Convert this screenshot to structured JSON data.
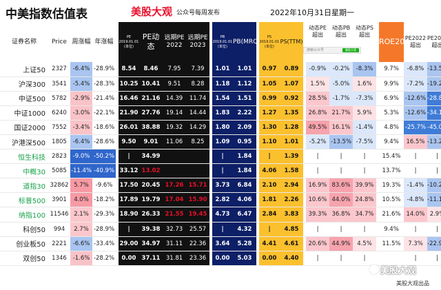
{
  "header": {
    "title": "中美指数估值表",
    "brand": "美股大观",
    "brand_sub": "公众号每周发布",
    "date": "2022年10月31日星期一"
  },
  "columns": {
    "name": "证券名称",
    "price": "Price",
    "week_chg": "周涨幅",
    "year_chg": "年涨幅",
    "pe_pct": "PE",
    "pe_pct_sub": "2019.01.01 (本位)",
    "pe_dyn": "PE动态",
    "pe_2022": "远期PE 2022",
    "pe_2023": "远期PE 2023",
    "pb_pct": "PB",
    "pb_pct_sub": "2019.01.01 (本位)",
    "pb_mrq": "PB(MRQ)",
    "ps_pct": "PS",
    "ps_pct_sub": "2019.01.01 (本位)",
    "ps_ttm": "PS(TTM)",
    "dyn_pe_exceed": "动态PE 超出",
    "dyn_pb_exceed": "动态PB 超出",
    "dyn_ps_exceed": "动态PS 超出",
    "roe": "ROE2021",
    "pe2022_exceed": "PE2022 超出",
    "pe2023_exceed": "PE2023 超出"
  },
  "wechat": {
    "placeholder": "搜索公众号",
    "button": "美股大观"
  },
  "colors": {
    "dark": "#111111",
    "navy": "#0d1f66",
    "gold": "#fbc02d",
    "orange": "#f5782a",
    "red": "#e8102a",
    "green": "#1aa24b",
    "blue": "#1a3ea6"
  },
  "rows": [
    {
      "name": "上证50",
      "green": false,
      "price": "2327",
      "week": "-6.4%",
      "year": "-28.9%",
      "pe_pct": "8.54",
      "pe_dyn": "8.46",
      "pe22": "7.95",
      "pe23": "7.39",
      "pb_pct": "1.01",
      "pb": "1.01",
      "ps_pct": "0.97",
      "ps": "0.89",
      "dpe": "-0.9%",
      "dpb": "-0.2%",
      "dps": "-8.3%",
      "roe": "9.7%",
      "e22": "-6.8%",
      "e23": "-13.5%"
    },
    {
      "name": "沪深300",
      "green": false,
      "price": "3541",
      "week": "-5.4%",
      "year": "-28.3%",
      "pe_pct": "10.25",
      "pe_dyn": "10.41",
      "pe22": "9.51",
      "pe23": "8.28",
      "pb_pct": "1.18",
      "pb": "1.12",
      "ps_pct": "1.05",
      "ps": "1.07",
      "dpe": "1.5%",
      "dpb": "-5.0%",
      "dps": "1.6%",
      "roe": "9.9%",
      "e22": "-7.2%",
      "e23": "-19.2%"
    },
    {
      "name": "中证500",
      "green": false,
      "price": "5782",
      "week": "-2.9%",
      "year": "-21.4%",
      "pe_pct": "16.46",
      "pe_dyn": "21.16",
      "pe22": "14.39",
      "pe23": "11.74",
      "pb_pct": "1.54",
      "pb": "1.51",
      "ps_pct": "0.99",
      "ps": "0.92",
      "dpe": "28.5%",
      "dpb": "-1.7%",
      "dps": "-7.3%",
      "roe": "6.9%",
      "e22": "-12.6%",
      "e23": "-28.8%"
    },
    {
      "name": "中证1000",
      "green": false,
      "price": "6240",
      "week": "-3.0%",
      "year": "-22.1%",
      "pe_pct": "21.90",
      "pe_dyn": "27.76",
      "pe22": "19.14",
      "pe23": "14.44",
      "pb_pct": "1.83",
      "pb": "2.22",
      "ps_pct": "1.27",
      "ps": "1.35",
      "dpe": "26.8%",
      "dpb": "21.7%",
      "dps": "5.9%",
      "roe": "5.3%",
      "e22": "-12.6%",
      "e23": "-34.1%"
    },
    {
      "name": "国证2000",
      "green": false,
      "price": "7552",
      "week": "-3.4%",
      "year": "-18.6%",
      "pe_pct": "26.01",
      "pe_dyn": "38.88",
      "pe22": "19.32",
      "pe23": "14.29",
      "pb_pct": "1.80",
      "pb": "2.09",
      "ps_pct": "1.30",
      "ps": "1.28",
      "dpe": "49.5%",
      "dpb": "16.1%",
      "dps": "-1.4%",
      "roe": "4.8%",
      "e22": "-25.7%",
      "e23": "-45.0%"
    },
    {
      "name": "沪港深500",
      "green": false,
      "price": "1805",
      "week": "-6.4%",
      "year": "-28.6%",
      "pe_pct": "9.50",
      "pe_dyn": "9.01",
      "pe22": "11.06",
      "pe23": "8.25",
      "pb_pct": "1.09",
      "pb": "0.95",
      "ps_pct": "1.10",
      "ps": "1.01",
      "dpe": "-5.2%",
      "dpb": "-13.5%",
      "dps": "-7.5%",
      "roe": "9.4%",
      "e22": "16.5%",
      "e23": "-13.2%"
    },
    {
      "name": "恒生科技",
      "green": true,
      "price": "2823",
      "week": "-9.0%",
      "year": "-50.2%",
      "pe_pct": "|",
      "pe_dyn": "34.99",
      "pe22": "",
      "pe23": "",
      "pb_pct": "|",
      "pb": "1.84",
      "ps_pct": "|",
      "ps": "1.39",
      "dpe": "|",
      "dpb": "|",
      "dps": "|",
      "roe": "15.4%",
      "e22": "|",
      "e23": "|"
    },
    {
      "name": "中概30",
      "green": true,
      "price": "5085",
      "week": "-11.4%",
      "year": "-40.9%",
      "pe_pct": "33.12",
      "pe_dyn": "13.02",
      "pe22": "",
      "pe23": "",
      "pb_pct": "|",
      "pb": "1.84",
      "ps_pct": "4.06",
      "ps": "1.58",
      "dpe": "|",
      "dpb": "|",
      "dps": "|",
      "roe": "13.7%",
      "e22": "|",
      "e23": "|"
    },
    {
      "name": "道指30",
      "green": true,
      "price": "32862",
      "week": "5.7%",
      "year": "-9.6%",
      "pe_pct": "17.50",
      "pe_dyn": "20.45",
      "pe22": "17.26",
      "pe23": "15.71",
      "pb_pct": "3.73",
      "pb": "6.84",
      "ps_pct": "2.10",
      "ps": "2.94",
      "dpe": "16.9%",
      "dpb": "83.6%",
      "dps": "39.9%",
      "roe": "19.3%",
      "e22": "-1.4%",
      "e23": "-10.2%"
    },
    {
      "name": "标普500",
      "green": true,
      "price": "3901",
      "week": "4.0%",
      "year": "-18.2%",
      "pe_pct": "17.89",
      "pe_dyn": "19.79",
      "pe22": "17.04",
      "pe23": "15.90",
      "pb_pct": "2.82",
      "pb": "4.06",
      "ps_pct": "1.81",
      "ps": "2.26",
      "dpe": "10.6%",
      "dpb": "44.0%",
      "dps": "24.8%",
      "roe": "10.5%",
      "e22": "-4.8%",
      "e23": "-11.1%"
    },
    {
      "name": "纳指100",
      "green": true,
      "price": "11546",
      "week": "2.1%",
      "year": "-29.3%",
      "pe_pct": "18.90",
      "pe_dyn": "26.33",
      "pe22": "21.55",
      "pe23": "19.45",
      "pb_pct": "4.73",
      "pb": "6.47",
      "ps_pct": "2.84",
      "ps": "3.83",
      "dpe": "39.3%",
      "dpb": "36.8%",
      "dps": "34.7%",
      "roe": "21.6%",
      "e22": "14.0%",
      "e23": "2.9%"
    },
    {
      "name": "科创50",
      "green": false,
      "price": "994",
      "week": "2.7%",
      "year": "-28.9%",
      "pe_pct": "|",
      "pe_dyn": "39.38",
      "pe22": "32.73",
      "pe23": "25.57",
      "pb_pct": "|",
      "pb": "4.32",
      "ps_pct": "|",
      "ps": "4.85",
      "dpe": "|",
      "dpb": "|",
      "dps": "|",
      "roe": "9.4%",
      "e22": "|",
      "e23": "|"
    },
    {
      "name": "创业板50",
      "green": false,
      "price": "2221",
      "week": "-6.6%",
      "year": "-33.4%",
      "pe_pct": "29.00",
      "pe_dyn": "34.97",
      "pe22": "31.11",
      "pe23": "22.36",
      "pb_pct": "3.64",
      "pb": "5.28",
      "ps_pct": "4.41",
      "ps": "4.61",
      "dpe": "20.6%",
      "dpb": "44.9%",
      "dps": "4.5%",
      "roe": "11.5%",
      "e22": "7.3%",
      "e23": "-22.9%"
    },
    {
      "name": "双创50",
      "green": false,
      "price": "1346",
      "week": "-1.6%",
      "year": "-28.2%",
      "pe_pct": "0.00",
      "pe_dyn": "37.11",
      "pe22": "31.81",
      "pe23": "23.36",
      "pb_pct": "0.00",
      "pb": "5.03",
      "ps_pct": "0.00",
      "ps": "4.40",
      "dpe": "|",
      "dpb": "|",
      "dps": "|",
      "roe": "",
      "e22": "|",
      "e23": "|"
    }
  ],
  "watermark": "美股大观",
  "footer": "美股大观出品"
}
